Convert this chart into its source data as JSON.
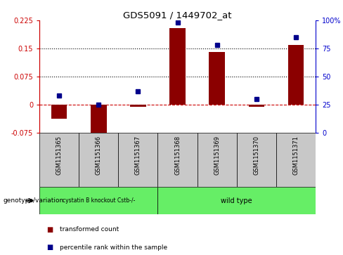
{
  "title": "GDS5091 / 1449702_at",
  "samples": [
    "GSM1151365",
    "GSM1151366",
    "GSM1151367",
    "GSM1151368",
    "GSM1151369",
    "GSM1151370",
    "GSM1151371"
  ],
  "transformed_count": [
    -0.038,
    -0.075,
    -0.005,
    0.205,
    0.14,
    -0.005,
    0.16
  ],
  "percentile_rank": [
    33,
    25,
    37,
    98,
    78,
    30,
    85
  ],
  "ylim_left": [
    -0.075,
    0.225
  ],
  "ylim_right": [
    0,
    100
  ],
  "yticks_left": [
    -0.075,
    0,
    0.075,
    0.15,
    0.225
  ],
  "yticks_right": [
    0,
    25,
    50,
    75,
    100
  ],
  "ytick_labels_left": [
    "-0.075",
    "0",
    "0.075",
    "0.15",
    "0.225"
  ],
  "ytick_labels_right": [
    "0",
    "25",
    "50",
    "75",
    "100%"
  ],
  "hlines": [
    0.075,
    0.15
  ],
  "bar_color": "#8B0000",
  "dot_color": "#00008B",
  "zero_line_color": "#CC0000",
  "background_color": "#ffffff",
  "plot_bg_color": "#ffffff",
  "group1": {
    "label": "cystatin B knockout Cstb-/-",
    "samples_range": [
      0,
      2
    ],
    "color": "#66EE66"
  },
  "group2": {
    "label": "wild type",
    "samples_range": [
      3,
      6
    ],
    "color": "#66EE66"
  },
  "legend_items": [
    {
      "label": "transformed count",
      "color": "#8B0000"
    },
    {
      "label": "percentile rank within the sample",
      "color": "#00008B"
    }
  ],
  "genotype_label": "genotype/variation",
  "col_bg_color": "#C8C8C8",
  "bar_width": 0.4
}
